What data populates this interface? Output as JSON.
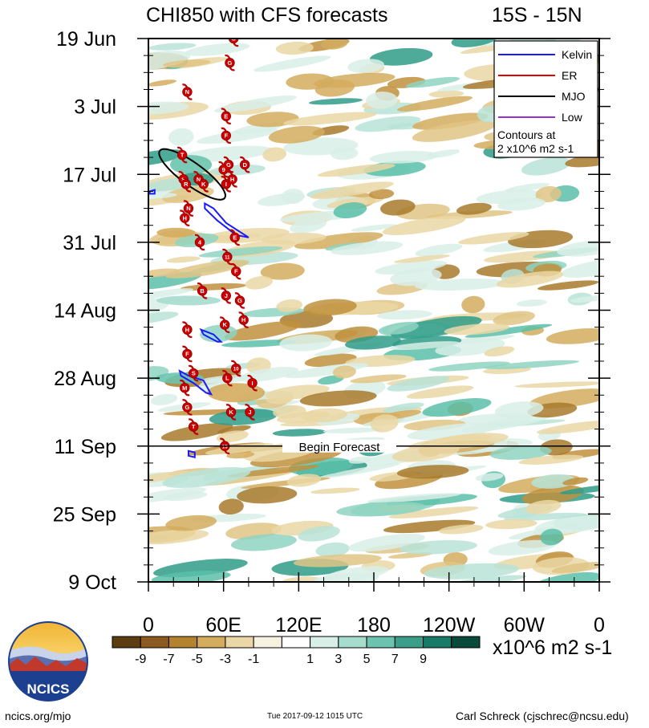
{
  "chart_data": {
    "type": "heatmap",
    "title": "CHI850 with CFS forecasts",
    "region": "15S - 15N",
    "x_ticks": [
      "0",
      "60E",
      "120E",
      "180",
      "120W",
      "60W",
      "0"
    ],
    "x_range_deg_east": [
      0,
      360
    ],
    "y_ticks": [
      "19 Jun",
      "3 Jul",
      "17 Jul",
      "31 Jul",
      "14 Aug",
      "28 Aug",
      "11 Sep",
      "25 Sep",
      "9 Oct"
    ],
    "y_range_days_from_first_tick": [
      0,
      112
    ],
    "forecast_line": {
      "label": "Begin Forecast",
      "day": 84
    },
    "colorbar": {
      "labels": [
        "-9",
        "-7",
        "-5",
        "-3",
        "-1",
        "1",
        "3",
        "5",
        "7",
        "9"
      ],
      "colors": [
        "#5c3d10",
        "#8a5a1f",
        "#b5822d",
        "#d4ac5e",
        "#ead7a5",
        "#f7f2df",
        "#ffffff",
        "#d8efe8",
        "#a6dccd",
        "#6cc4b0",
        "#3a9e8a",
        "#167a67",
        "#0a4a3c"
      ],
      "units": "x10^6 m2 s-1"
    },
    "legend": {
      "position": "top-right",
      "entries": [
        {
          "name": "Kelvin",
          "color": "#1a1aff"
        },
        {
          "name": "ER",
          "color": "#e60000"
        },
        {
          "name": "MJO",
          "color": "#000000"
        },
        {
          "name": "Low",
          "color": "#9932cc"
        }
      ],
      "note_line1": "Contours at",
      "note_line2": "2 x10^6 m2 s-1"
    },
    "storms": [
      {
        "label": "G",
        "lon": 68,
        "day": 0
      },
      {
        "label": "G",
        "lon": 65,
        "day": 5
      },
      {
        "label": "N",
        "lon": 31,
        "day": 11
      },
      {
        "label": "E",
        "lon": 62,
        "day": 16
      },
      {
        "label": "F",
        "lon": 62,
        "day": 20
      },
      {
        "label": "T",
        "lon": 27,
        "day": 24
      },
      {
        "label": "G",
        "lon": 64,
        "day": 26
      },
      {
        "label": "D",
        "lon": 77,
        "day": 26
      },
      {
        "label": "9",
        "lon": 60,
        "day": 27
      },
      {
        "label": "S",
        "lon": 28,
        "day": 29
      },
      {
        "label": "R",
        "lon": 30,
        "day": 30
      },
      {
        "label": "N",
        "lon": 40,
        "day": 29
      },
      {
        "label": "K",
        "lon": 44,
        "day": 30
      },
      {
        "label": "I",
        "lon": 62,
        "day": 30
      },
      {
        "label": "H",
        "lon": 67,
        "day": 29
      },
      {
        "label": "N",
        "lon": 32,
        "day": 35
      },
      {
        "label": "H",
        "lon": 29,
        "day": 37
      },
      {
        "label": "E",
        "lon": 69,
        "day": 41
      },
      {
        "label": "4",
        "lon": 41,
        "day": 42
      },
      {
        "label": "11",
        "lon": 63,
        "day": 45
      },
      {
        "label": "F",
        "lon": 70,
        "day": 48
      },
      {
        "label": "B",
        "lon": 43,
        "day": 52
      },
      {
        "label": "J",
        "lon": 62,
        "day": 53
      },
      {
        "label": "G",
        "lon": 73,
        "day": 54
      },
      {
        "label": "H",
        "lon": 76,
        "day": 58
      },
      {
        "label": "K",
        "lon": 61,
        "day": 59
      },
      {
        "label": "H",
        "lon": 31,
        "day": 60
      },
      {
        "label": "F",
        "lon": 31,
        "day": 65
      },
      {
        "label": "10",
        "lon": 70,
        "day": 68
      },
      {
        "label": "S",
        "lon": 36,
        "day": 69
      },
      {
        "label": "L",
        "lon": 63,
        "day": 70
      },
      {
        "label": "I",
        "lon": 83,
        "day": 71
      },
      {
        "label": "M",
        "lon": 29,
        "day": 72
      },
      {
        "label": "G",
        "lon": 31,
        "day": 76
      },
      {
        "label": "K",
        "lon": 66,
        "day": 77
      },
      {
        "label": "J",
        "lon": 81,
        "day": 77
      },
      {
        "label": "T",
        "lon": 36,
        "day": 80
      },
      {
        "label": "15",
        "lon": 61,
        "day": 84
      }
    ]
  },
  "logo": {
    "text": "NCICS"
  },
  "footer": {
    "left": "ncics.org/mjo",
    "center": "Tue 2017-09-12 1015 UTC",
    "right": "Carl Schreck (cjschrec@ncsu.edu)"
  }
}
